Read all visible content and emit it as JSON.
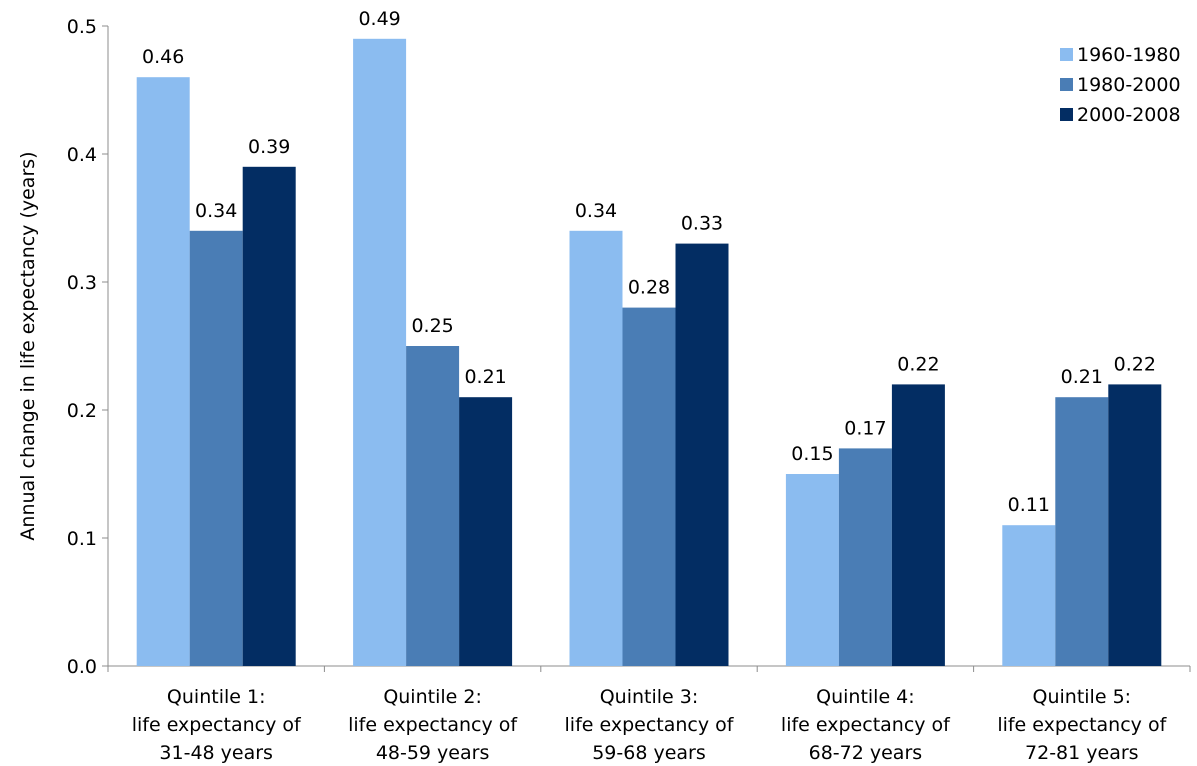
{
  "chart_data": {
    "type": "bar",
    "title": "",
    "xlabel": "",
    "ylabel": "Annual change in life expectancy (years)",
    "ylim": [
      0,
      0.5
    ],
    "yticks": [
      "0.0",
      "0.1",
      "0.2",
      "0.3",
      "0.4",
      "0.5"
    ],
    "ytick_values": [
      0,
      0.1,
      0.2,
      0.3,
      0.4,
      0.5
    ],
    "grid": false,
    "legend_position": "top-right",
    "categories": [
      [
        "Quintile 1:",
        "life expectancy of",
        "31-48 years"
      ],
      [
        "Quintile 2:",
        "life expectancy of",
        "48-59 years"
      ],
      [
        "Quintile 3:",
        "life expectancy of",
        "59-68 years"
      ],
      [
        "Quintile 4:",
        "life expectancy of",
        "68-72 years"
      ],
      [
        "Quintile 5:",
        "life expectancy of",
        "72-81 years"
      ]
    ],
    "series": [
      {
        "name": "1960-1980",
        "color": "#8bbcf0",
        "values": [
          0.46,
          0.49,
          0.34,
          0.15,
          0.11
        ],
        "labels": [
          "0.46",
          "0.49",
          "0.34",
          "0.15",
          "0.11"
        ]
      },
      {
        "name": "1980-2000",
        "color": "#4a7db5",
        "values": [
          0.34,
          0.25,
          0.28,
          0.17,
          0.21
        ],
        "labels": [
          "0.34",
          "0.25",
          "0.28",
          "0.17",
          "0.21"
        ]
      },
      {
        "name": "2000-2008",
        "color": "#032d63",
        "values": [
          0.39,
          0.21,
          0.33,
          0.22,
          0.22
        ],
        "labels": [
          "0.39",
          "0.21",
          "0.33",
          "0.22",
          "0.22"
        ]
      }
    ]
  }
}
